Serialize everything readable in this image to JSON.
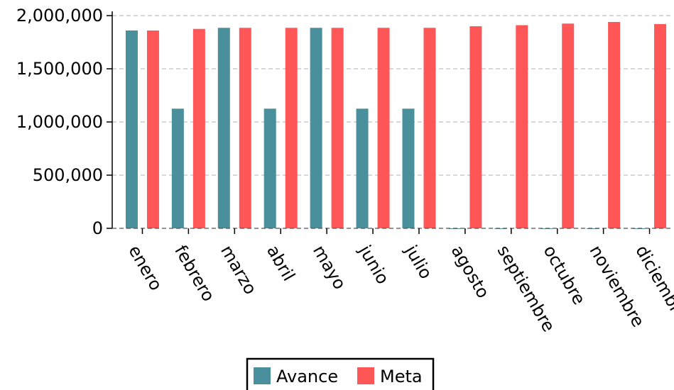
{
  "chart_data": {
    "type": "bar",
    "title": "",
    "xlabel": "",
    "ylabel": "",
    "categories": [
      "enero",
      "febrero",
      "marzo",
      "abril",
      "mayo",
      "junio",
      "julio",
      "agosto",
      "septiembre",
      "octubre",
      "noviembre",
      "diciembre"
    ],
    "series": [
      {
        "name": "Avance",
        "color": "#4a8f9c",
        "values": [
          1860000,
          1125000,
          1885000,
          1125000,
          1885000,
          1125000,
          1125000,
          0,
          0,
          0,
          0,
          0
        ]
      },
      {
        "name": "Meta",
        "color": "#ff5757",
        "values": [
          1860000,
          1875000,
          1885000,
          1885000,
          1885000,
          1885000,
          1885000,
          1900000,
          1910000,
          1925000,
          1940000,
          1920000
        ]
      }
    ],
    "ylim": [
      0,
      2000000
    ],
    "yticks": [
      0,
      500000,
      1000000,
      1500000,
      2000000
    ],
    "ytick_labels": [
      "0",
      "500,000",
      "1,000,000",
      "1,500,000",
      "2,000,000"
    ],
    "grid": true,
    "legend_placement": "bottom-center"
  }
}
